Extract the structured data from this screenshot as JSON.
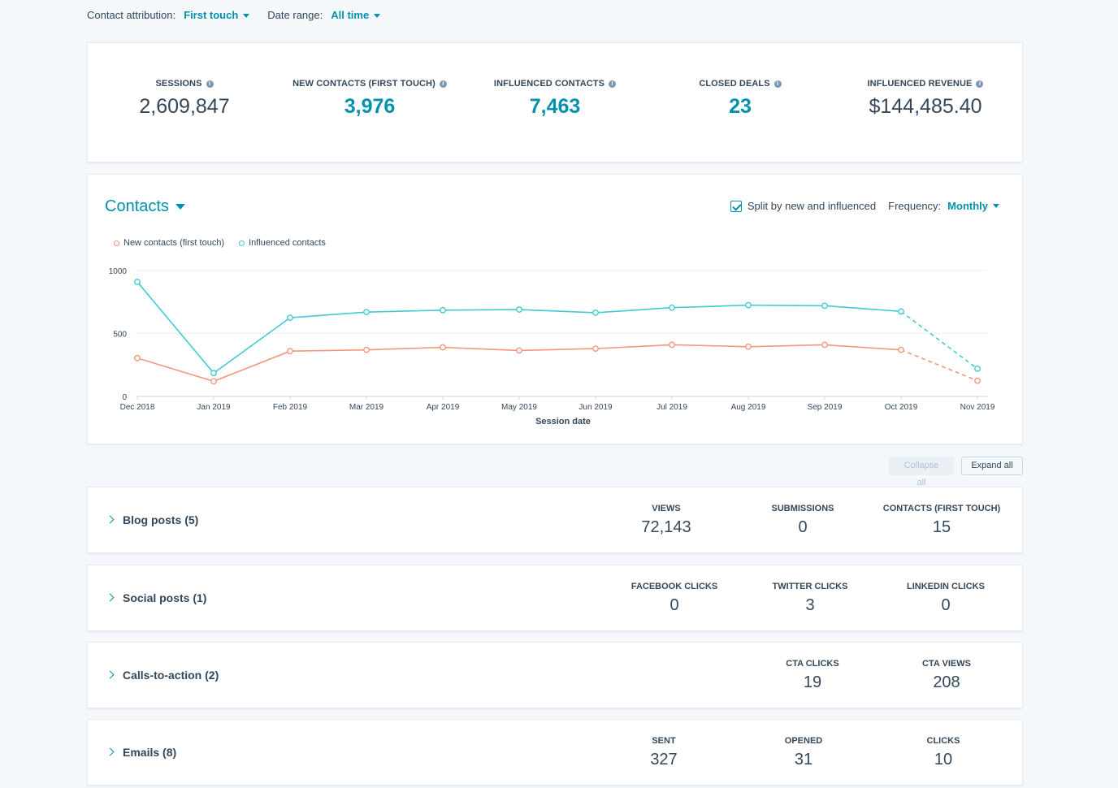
{
  "filters": {
    "attribution_label": "Contact attribution:",
    "attribution_value": "First touch",
    "date_label": "Date range:",
    "date_value": "All time"
  },
  "kpis": [
    {
      "label": "SESSIONS",
      "value": "2,609,847",
      "link": false
    },
    {
      "label": "NEW CONTACTS (FIRST TOUCH)",
      "value": "3,976",
      "link": true
    },
    {
      "label": "INFLUENCED CONTACTS",
      "value": "7,463",
      "link": true
    },
    {
      "label": "CLOSED DEALS",
      "value": "23",
      "link": true
    },
    {
      "label": "INFLUENCED REVENUE",
      "value": "$144,485.40",
      "link": false
    }
  ],
  "chart_panel": {
    "title": "Contacts",
    "split_label": "Split by new and influenced",
    "split_checked": true,
    "frequency_label": "Frequency:",
    "frequency_value": "Monthly"
  },
  "chart_data": {
    "type": "line",
    "xlabel": "Session date",
    "ylabel": "",
    "ylim": [
      0,
      1000
    ],
    "yticks": [
      0,
      500,
      1000
    ],
    "grid": true,
    "legend_position": "top-left",
    "categories": [
      "Dec 2018",
      "Jan 2019",
      "Feb 2019",
      "Mar 2019",
      "Apr 2019",
      "May 2019",
      "Jun 2019",
      "Jul 2019",
      "Aug 2019",
      "Sep 2019",
      "Oct 2019",
      "Nov 2019"
    ],
    "series": [
      {
        "name": "New contacts (first touch)",
        "color": "#f2977a",
        "values": [
          305,
          120,
          360,
          370,
          390,
          365,
          380,
          410,
          395,
          410,
          370,
          125
        ],
        "dashed_last_segment": true
      },
      {
        "name": "Influenced contacts",
        "color": "#43c9d3",
        "values": [
          910,
          185,
          625,
          670,
          685,
          690,
          665,
          705,
          725,
          720,
          675,
          220
        ],
        "dashed_last_segment": true
      }
    ]
  },
  "buttons": {
    "collapse": "Collapse all",
    "expand": "Expand all"
  },
  "sections": [
    {
      "title": "Blog posts (5)",
      "metrics": [
        {
          "label": "VIEWS",
          "value": "72,143"
        },
        {
          "label": "SUBMISSIONS",
          "value": "0"
        },
        {
          "label": "CONTACTS (FIRST TOUCH)",
          "value": "15"
        }
      ]
    },
    {
      "title": "Social posts (1)",
      "metrics": [
        {
          "label": "FACEBOOK CLICKS",
          "value": "0"
        },
        {
          "label": "TWITTER CLICKS",
          "value": "3"
        },
        {
          "label": "LINKEDIN CLICKS",
          "value": "0"
        }
      ]
    },
    {
      "title": "Calls-to-action (2)",
      "metrics": [
        {
          "label": "CTA CLICKS",
          "value": "19"
        },
        {
          "label": "CTA VIEWS",
          "value": "208"
        }
      ]
    },
    {
      "title": "Emails (8)",
      "metrics": [
        {
          "label": "SENT",
          "value": "327"
        },
        {
          "label": "OPENED",
          "value": "31"
        },
        {
          "label": "CLICKS",
          "value": "10"
        }
      ]
    }
  ]
}
